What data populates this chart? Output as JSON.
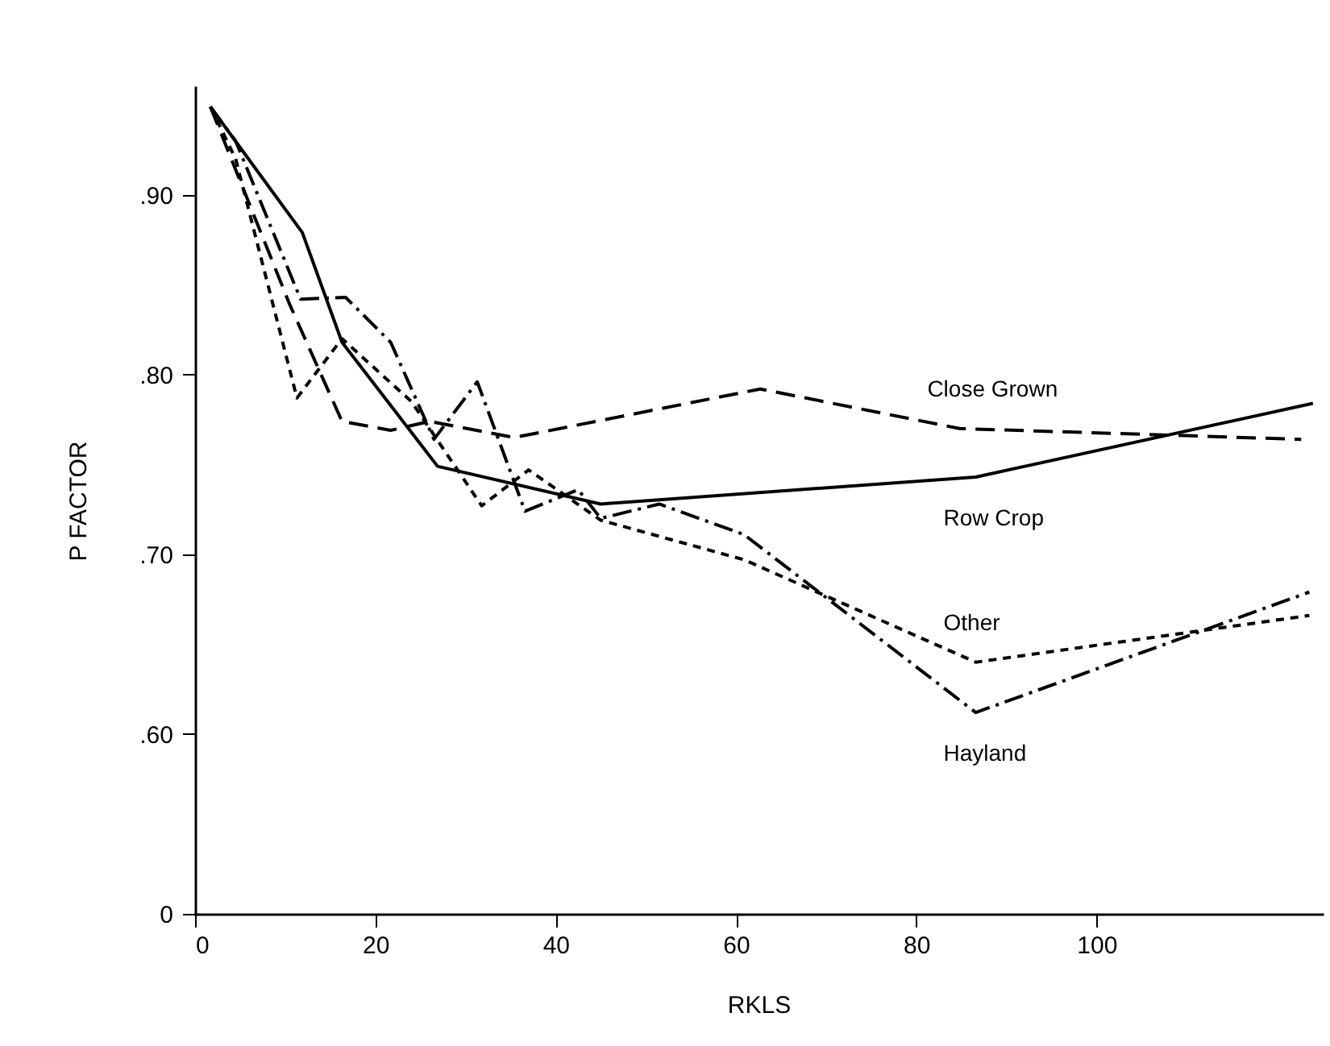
{
  "chart_data": {
    "type": "line",
    "xlabel": "RKLS",
    "ylabel": "P FACTOR",
    "xlim": [
      0,
      125
    ],
    "xticks": [
      0,
      20,
      40,
      60,
      80,
      100
    ],
    "ylim": [
      0.5,
      0.96
    ],
    "yticks": [
      {
        "value": 0.5,
        "label": "0"
      },
      {
        "value": 0.6,
        "label": ".60"
      },
      {
        "value": 0.7,
        "label": ".70"
      },
      {
        "value": 0.8,
        "label": ".80"
      },
      {
        "value": 0.9,
        "label": ".90"
      }
    ],
    "grid": false,
    "marker": "none",
    "series": [
      {
        "name": "Close Grown",
        "color": "#000000",
        "line_style": "dashed",
        "x": [
          1.7,
          10.5,
          16.3,
          21.7,
          26,
          35.4,
          62.7,
          84.8,
          122.7
        ],
        "values": [
          0.949,
          0.839,
          0.774,
          0.769,
          0.774,
          0.765,
          0.792,
          0.77,
          0.764
        ]
      },
      {
        "name": "Row Crop",
        "color": "#000000",
        "line_style": "solid",
        "x": [
          1.7,
          11.9,
          16.3,
          26.9,
          45,
          86.6,
          124
        ],
        "values": [
          0.949,
          0.879,
          0.818,
          0.749,
          0.728,
          0.743,
          0.784
        ]
      },
      {
        "name": "Other",
        "color": "#000000",
        "line_style": "dotted",
        "x": [
          1.7,
          4.5,
          11.3,
          16.3,
          24,
          31.8,
          37,
          45,
          60.9,
          86.6,
          123.6
        ],
        "values": [
          0.949,
          0.92,
          0.787,
          0.82,
          0.785,
          0.727,
          0.747,
          0.719,
          0.697,
          0.64,
          0.666
        ]
      },
      {
        "name": "Hayland",
        "color": "#000000",
        "line_style": "dashdot",
        "x": [
          1.7,
          4.5,
          11.7,
          16.7,
          21.7,
          26.5,
          31.3,
          36.6,
          42.5,
          45,
          51.5,
          60.9,
          86.6,
          123.6
        ],
        "values": [
          0.949,
          0.93,
          0.842,
          0.843,
          0.818,
          0.764,
          0.796,
          0.724,
          0.736,
          0.72,
          0.728,
          0.711,
          0.612,
          0.679
        ]
      }
    ]
  }
}
